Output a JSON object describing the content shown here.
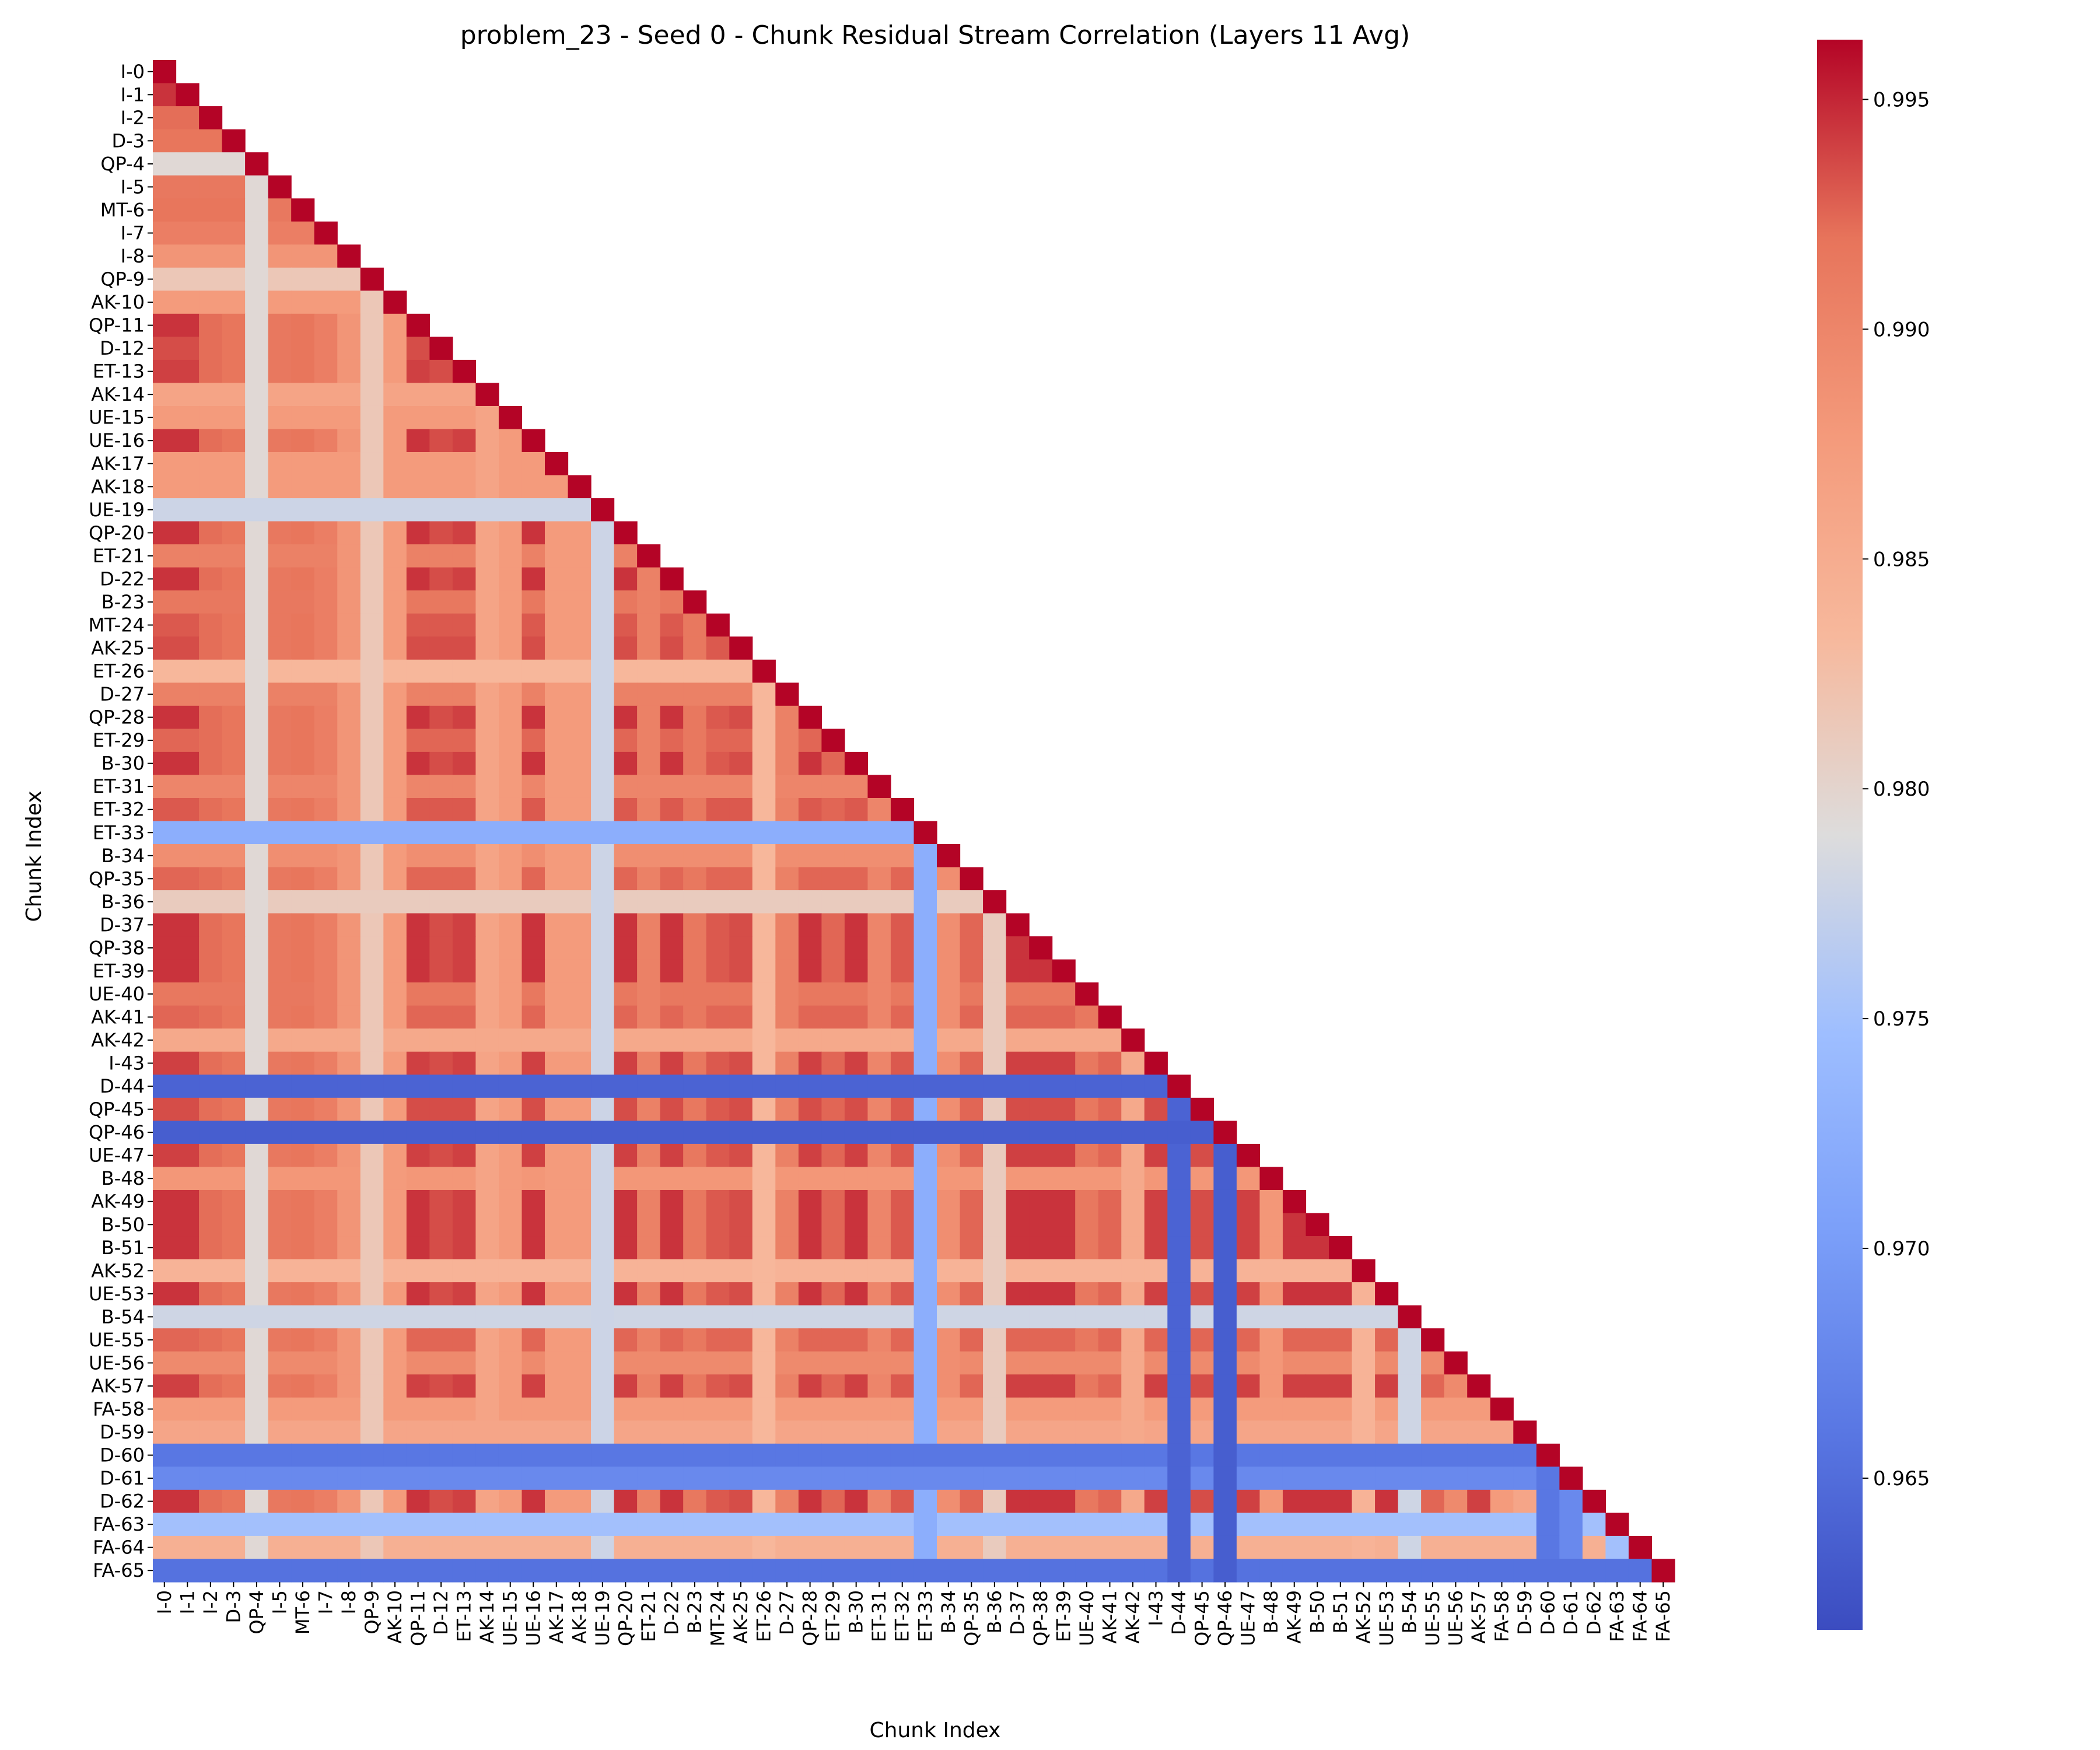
{
  "chart_data": {
    "type": "heatmap",
    "title": "problem_23 - Seed 0 - Chunk Residual Stream Correlation (Layers 11 Avg)",
    "xlabel": "Chunk Index",
    "ylabel": "Chunk Index",
    "colormap": "coolwarm",
    "mask": "upper triangle (lower triangle incl. diagonal shown)",
    "colorbar": {
      "min": 0.9617,
      "max": 0.9963,
      "ticks": [
        0.965,
        0.97,
        0.975,
        0.98,
        0.985,
        0.99,
        0.995
      ],
      "tick_labels": [
        "0.965",
        "0.970",
        "0.975",
        "0.980",
        "0.985",
        "0.990",
        "0.995"
      ]
    },
    "labels": [
      "I-0",
      "I-1",
      "I-2",
      "D-3",
      "QP-4",
      "I-5",
      "MT-6",
      "I-7",
      "I-8",
      "QP-9",
      "AK-10",
      "QP-11",
      "D-12",
      "ET-13",
      "AK-14",
      "UE-15",
      "UE-16",
      "AK-17",
      "AK-18",
      "UE-19",
      "QP-20",
      "ET-21",
      "D-22",
      "B-23",
      "MT-24",
      "AK-25",
      "ET-26",
      "D-27",
      "QP-28",
      "ET-29",
      "B-30",
      "ET-31",
      "ET-32",
      "ET-33",
      "B-34",
      "QP-35",
      "B-36",
      "D-37",
      "QP-38",
      "ET-39",
      "UE-40",
      "AK-41",
      "AK-42",
      "I-43",
      "D-44",
      "QP-45",
      "QP-46",
      "UE-47",
      "B-48",
      "AK-49",
      "B-50",
      "B-51",
      "AK-52",
      "UE-53",
      "B-54",
      "UE-55",
      "UE-56",
      "AK-57",
      "FA-58",
      "D-59",
      "D-60",
      "D-61",
      "D-62",
      "FA-63",
      "FA-64",
      "FA-65"
    ],
    "chunk_base_correlation": [
      0.9948,
      0.9945,
      0.9922,
      0.9918,
      0.9795,
      0.9915,
      0.9918,
      0.9908,
      0.9882,
      0.9815,
      0.9875,
      0.9945,
      0.9935,
      0.994,
      0.9862,
      0.9875,
      0.9945,
      0.9875,
      0.9875,
      0.9778,
      0.9945,
      0.9905,
      0.9945,
      0.9915,
      0.993,
      0.9935,
      0.9835,
      0.9905,
      0.9945,
      0.9925,
      0.9945,
      0.99,
      0.993,
      0.9725,
      0.989,
      0.9925,
      0.981,
      0.9945,
      0.9945,
      0.9945,
      0.9915,
      0.9925,
      0.9855,
      0.994,
      0.964,
      0.9935,
      0.9635,
      0.994,
      0.988,
      0.9945,
      0.9945,
      0.9945,
      0.984,
      0.9945,
      0.978,
      0.9925,
      0.9895,
      0.994,
      0.9875,
      0.986,
      0.966,
      0.968,
      0.9945,
      0.975,
      0.9845,
      0.9655
    ],
    "note": "cell value (i,j) = min(chunk_base_correlation[i], chunk_base_correlation[j]); diagonal = 1.0 (clipped to colorbar max)"
  }
}
